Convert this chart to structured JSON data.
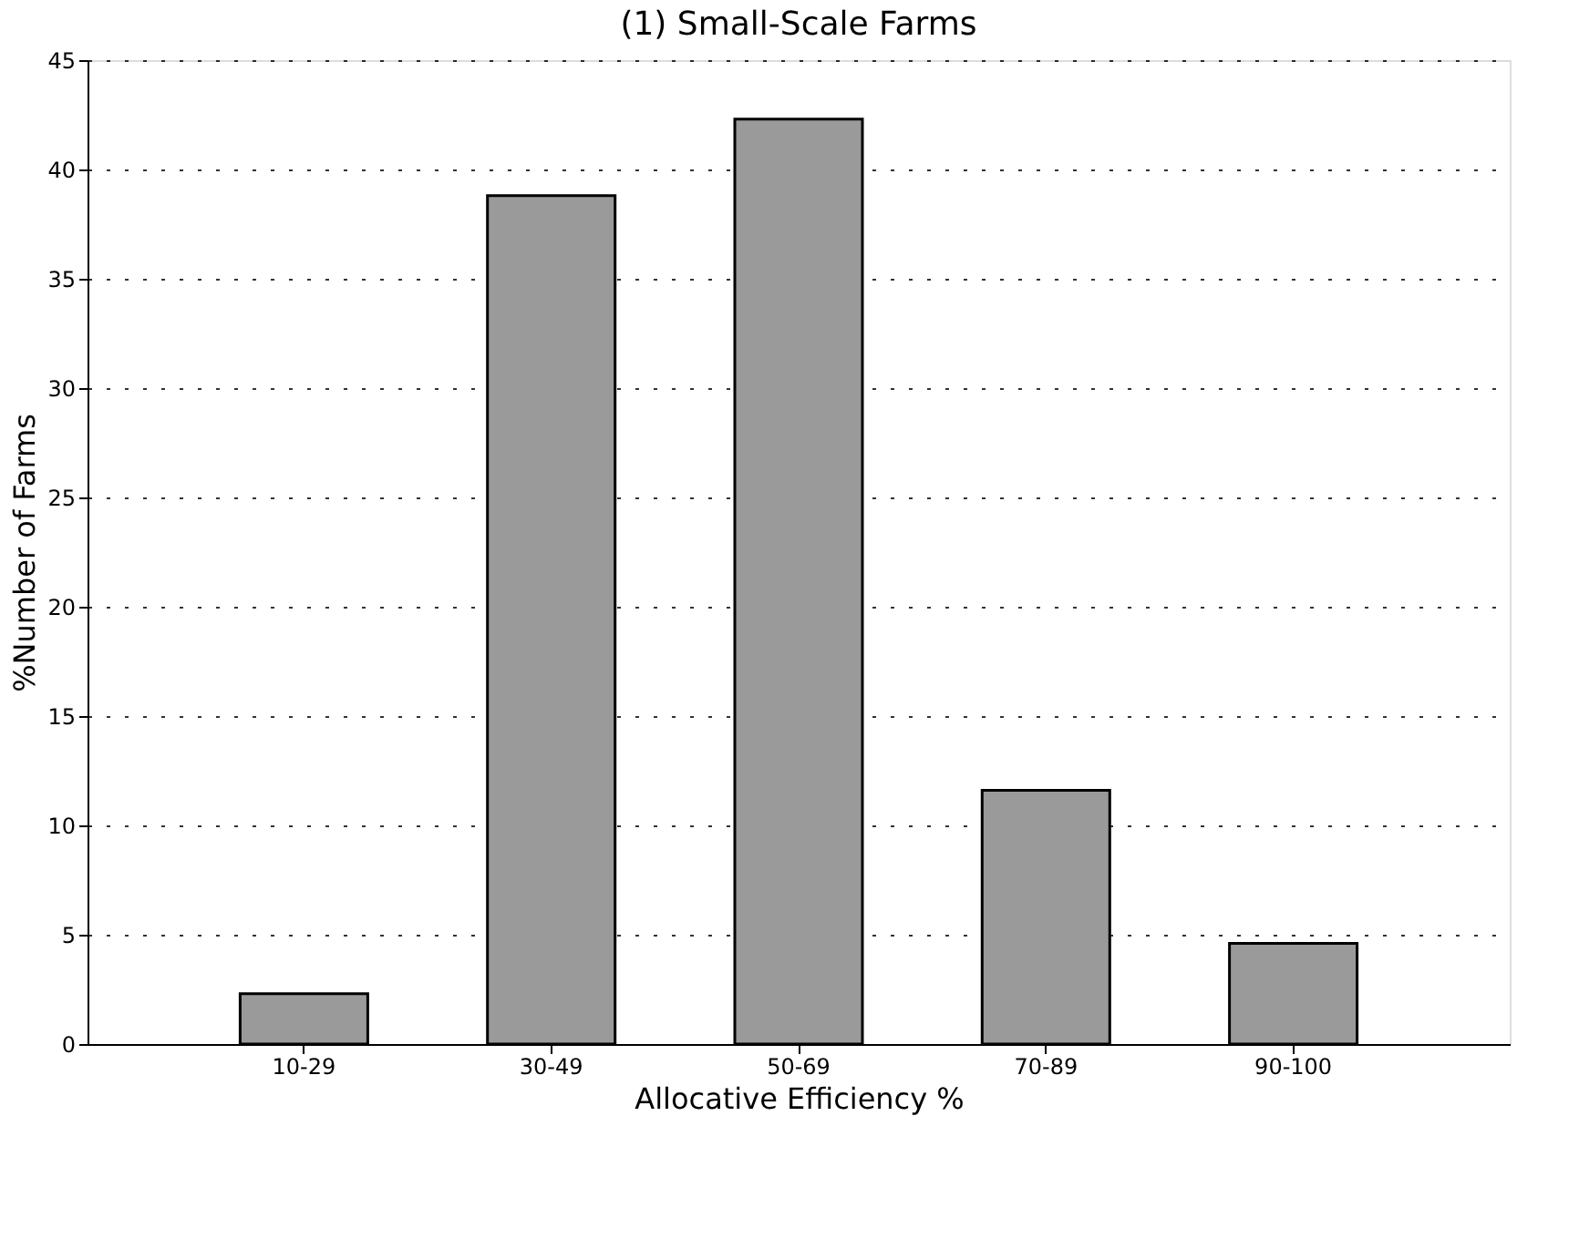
{
  "chart_data": {
    "type": "bar",
    "title": "(1) Small-Scale Farms",
    "xlabel": "Allocative Efficiency %",
    "ylabel": "%Number of Farms",
    "categories": [
      "10-29",
      "30-49",
      "50-69",
      "70-89",
      "90-100"
    ],
    "values": [
      2.3,
      38.8,
      42.3,
      11.6,
      4.6
    ],
    "color": "#9a9a9a",
    "ylim": [
      0,
      45
    ],
    "yticks": [
      0,
      5,
      10,
      15,
      20,
      25,
      30,
      35,
      40,
      45
    ],
    "grid": "y"
  }
}
